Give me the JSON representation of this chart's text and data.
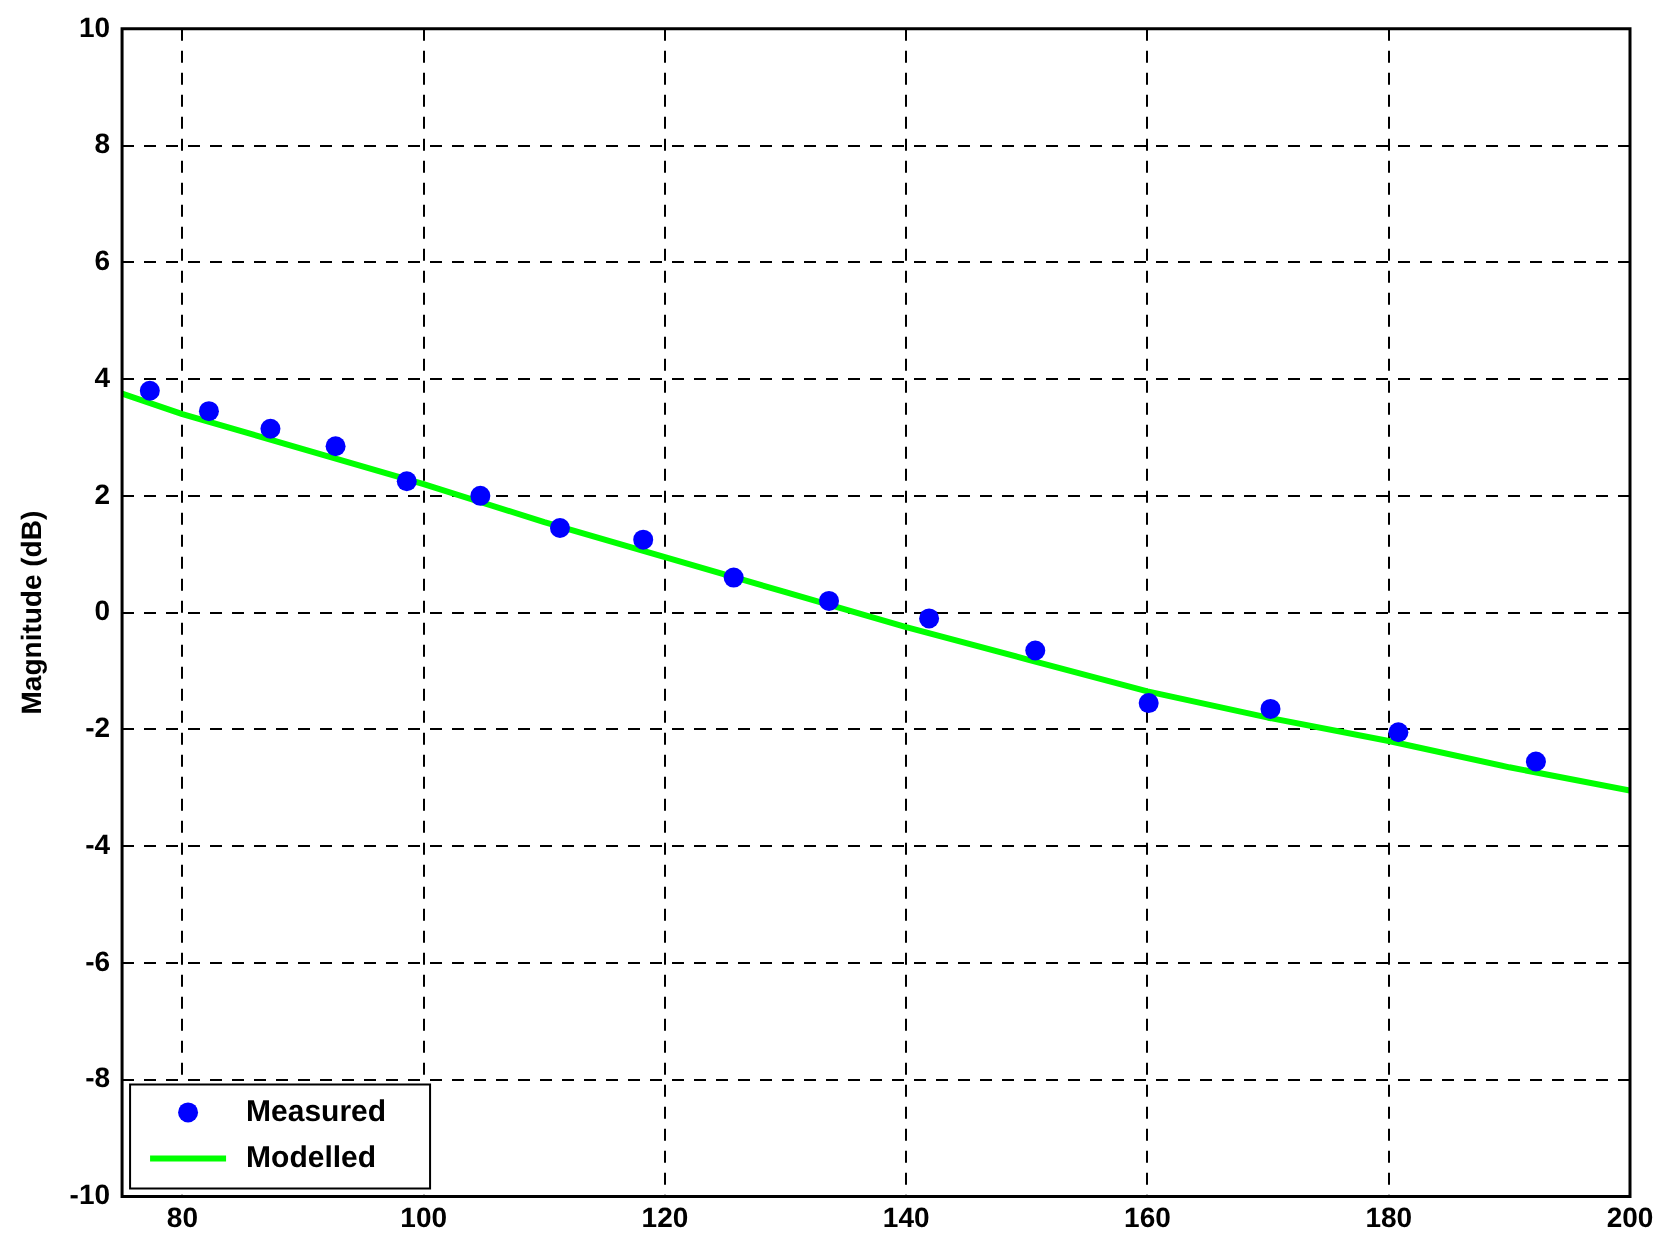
{
  "chart_data": {
    "type": "scatter",
    "ylabel": "Magnitude (dB)",
    "xlim": [
      75,
      200
    ],
    "xticks": [
      80,
      100,
      120,
      140,
      160,
      180,
      200
    ],
    "ylim": [
      -10,
      10
    ],
    "yticks": [
      -10,
      -8,
      -6,
      -4,
      -2,
      0,
      2,
      4,
      6,
      8,
      10
    ],
    "grid": true,
    "legend": "bottom left",
    "series": [
      {
        "name": "Measured",
        "type": "scatter",
        "marker": "circle",
        "color": "#0000ff",
        "x": [
          77.3,
          82.2,
          87.3,
          92.7,
          98.6,
          104.7,
          111.3,
          118.2,
          125.7,
          133.6,
          141.9,
          150.7,
          160.1,
          170.2,
          180.8,
          192.2
        ],
        "values": [
          3.8,
          3.45,
          3.15,
          2.85,
          2.25,
          2.0,
          1.45,
          1.25,
          0.6,
          0.2,
          -0.1,
          -0.65,
          -1.55,
          -1.65,
          -2.05,
          -2.55
        ]
      },
      {
        "name": "Modelled",
        "type": "line",
        "marker": "none",
        "line_style": "solid",
        "color": "#00ff00",
        "x": [
          75,
          80,
          90,
          100,
          110,
          120,
          130,
          140,
          150,
          160,
          170,
          180,
          190,
          200
        ],
        "values": [
          3.75,
          3.4,
          2.8,
          2.2,
          1.55,
          0.95,
          0.35,
          -0.25,
          -0.8,
          -1.35,
          -1.8,
          -2.2,
          -2.65,
          -3.05
        ]
      }
    ]
  }
}
